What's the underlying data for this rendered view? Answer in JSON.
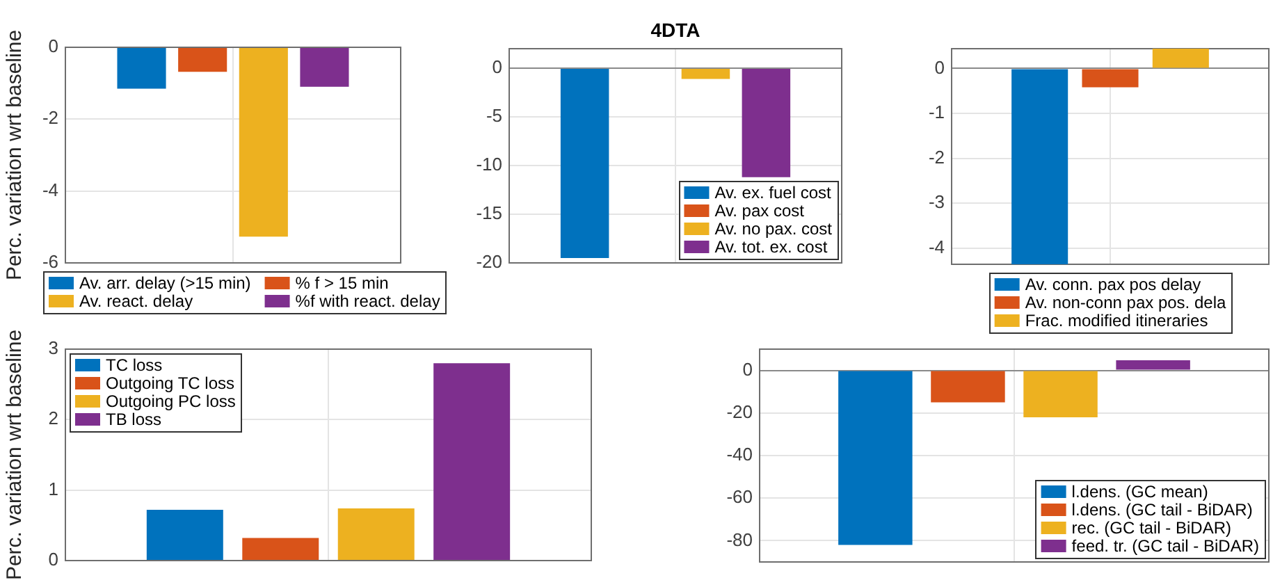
{
  "chart_data": [
    {
      "type": "bar",
      "ylabel": "Perc. variation wrt baseline",
      "categories": [
        null
      ],
      "series": [
        {
          "name": "Av. arr. delay (>15 min)",
          "color": "#0072bd",
          "values": [
            -1.15
          ]
        },
        {
          "name": "% f > 15 min",
          "color": "#d95319",
          "values": [
            -0.68
          ]
        },
        {
          "name": "Av. react. delay",
          "color": "#edb120",
          "values": [
            -5.27
          ]
        },
        {
          "name": "%f with react. delay",
          "color": "#7e2f8e",
          "values": [
            -1.1
          ]
        }
      ],
      "ylim": [
        -6,
        0
      ],
      "yticks": [
        -6,
        -4,
        -2,
        0
      ],
      "grid": true,
      "legend": "bottom",
      "tick_labels": "y"
    },
    {
      "type": "bar",
      "title": "4DTA",
      "categories": [
        null
      ],
      "series": [
        {
          "name": "Av. ex. fuel cost",
          "color": "#0072bd",
          "values": [
            -19.5
          ]
        },
        {
          "name": "Av. pax cost",
          "color": "#d95319",
          "values": [
            0
          ]
        },
        {
          "name": "Av. no pax. cost",
          "color": "#edb120",
          "values": [
            -1.1
          ]
        },
        {
          "name": "Av. tot. ex. cost",
          "color": "#7e2f8e",
          "values": [
            -11.2
          ]
        }
      ],
      "ylim": [
        -20,
        2
      ],
      "yticks": [
        -20,
        -15,
        -10,
        -5,
        0
      ],
      "grid": true,
      "legend": "bottom right",
      "tick_labels": "y"
    },
    {
      "type": "bar",
      "categories": [
        null
      ],
      "series": [
        {
          "name": "Av. conn. pax pos delay",
          "color": "#0072bd",
          "values": [
            -4.36
          ]
        },
        {
          "name": "Av. non-conn pax pos. dela",
          "color": "#d95319",
          "values": [
            -0.42
          ]
        },
        {
          "name": "Frac. modified itineraries",
          "color": "#edb120",
          "values": [
            0.44
          ]
        }
      ],
      "ylim": [
        -4.36,
        0.44
      ],
      "yticks": [
        -4,
        -3,
        -2,
        -1,
        0
      ],
      "grid": true,
      "legend": "bottom",
      "tick_labels": "y"
    },
    {
      "type": "bar",
      "ylabel": "Perc. variation wrt baseline",
      "categories": [
        null
      ],
      "series": [
        {
          "name": "TC loss",
          "color": "#0072bd",
          "values": [
            0.72
          ]
        },
        {
          "name": "Outgoing TC loss",
          "color": "#d95319",
          "values": [
            0.32
          ]
        },
        {
          "name": "Outgoing PC loss",
          "color": "#edb120",
          "values": [
            0.74
          ]
        },
        {
          "name": "TB loss",
          "color": "#7e2f8e",
          "values": [
            2.8
          ]
        }
      ],
      "ylim": [
        0,
        3
      ],
      "yticks": [
        0,
        1,
        2,
        3
      ],
      "grid": true,
      "legend": "top left",
      "tick_labels": "y"
    },
    {
      "type": "bar",
      "categories": [
        null
      ],
      "series": [
        {
          "name": "l.dens. (GC mean)",
          "color": "#0072bd",
          "values": [
            -82
          ]
        },
        {
          "name": "l.dens. (GC tail - BiDAR)",
          "color": "#d95319",
          "values": [
            -15
          ]
        },
        {
          "name": "rec. (GC tail - BiDAR)",
          "color": "#edb120",
          "values": [
            -22
          ]
        },
        {
          "name": "feed. tr. (GC tail - BiDAR)",
          "color": "#7e2f8e",
          "values": [
            4.8
          ]
        }
      ],
      "ylim": [
        -90,
        10
      ],
      "yticks": [
        -80,
        -60,
        -40,
        -20,
        0
      ],
      "grid": true,
      "legend": "bottom right",
      "tick_labels": "y"
    }
  ]
}
